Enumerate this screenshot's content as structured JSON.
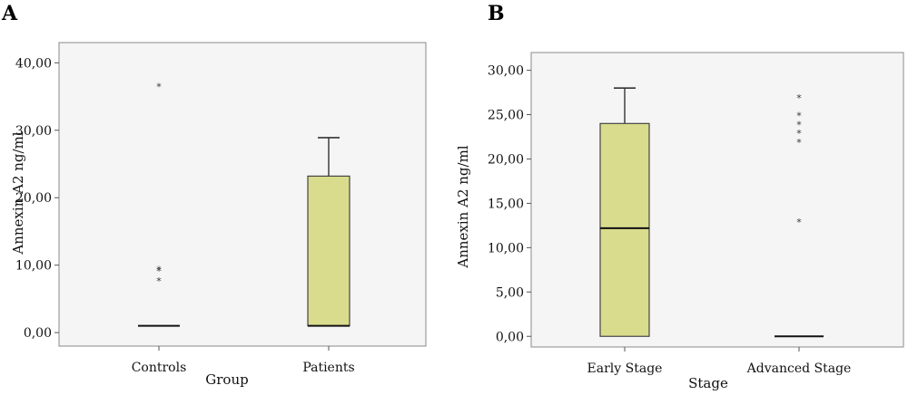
{
  "chart_data": [
    {
      "type": "box",
      "panel_label": "A",
      "xlabel": "Group",
      "ylabel": "Annexin A2 ng/ml",
      "ylim": [
        -2,
        43
      ],
      "yticks": [
        "0,00",
        "10,00",
        "20,00",
        "30,00",
        "40,00"
      ],
      "ytick_values": [
        0,
        10,
        20,
        30,
        40
      ],
      "grid": false,
      "boxes": [
        {
          "category": "Controls",
          "min": 1,
          "q1": 1,
          "median": 1,
          "q3": 1,
          "max": 1,
          "outliers": [
            36.6,
            9.5,
            9.3,
            7.8
          ],
          "fill": "none"
        },
        {
          "category": "Patients",
          "min": 1,
          "q1": 1,
          "median": 1,
          "q3": 23.2,
          "max": 28.9,
          "outliers": [],
          "fill": "#d9dc8c"
        }
      ]
    },
    {
      "type": "box",
      "panel_label": "B",
      "xlabel": "Stage",
      "ylabel": "Annexin A2 ng/ml",
      "ylim": [
        -1.2,
        32
      ],
      "yticks": [
        "0,00",
        "5,00",
        "10,00",
        "15,00",
        "20,00",
        "25,00",
        "30,00"
      ],
      "ytick_values": [
        0,
        5,
        10,
        15,
        20,
        25,
        30
      ],
      "grid": false,
      "boxes": [
        {
          "category": "Early Stage",
          "min": 0,
          "q1": 0,
          "median": 12.2,
          "q3": 24,
          "max": 28,
          "outliers": [],
          "fill": "#d9dc8c"
        },
        {
          "category": "Advanced Stage",
          "min": 0,
          "q1": 0,
          "median": 0,
          "q3": 0,
          "max": 0,
          "outliers": [
            27,
            25,
            24,
            23,
            22,
            13
          ],
          "fill": "none"
        }
      ]
    }
  ]
}
